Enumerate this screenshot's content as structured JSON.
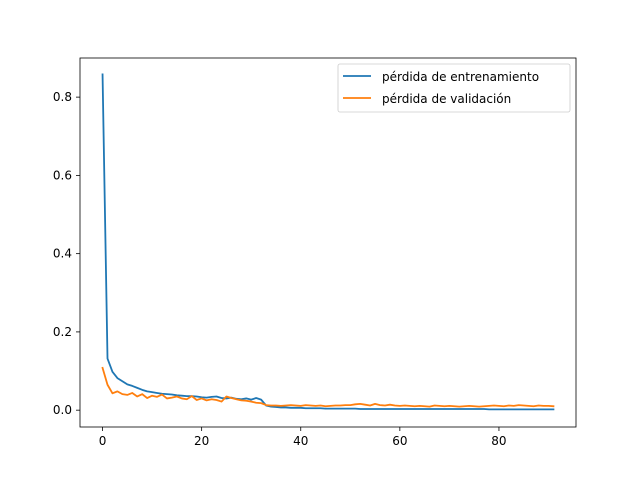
{
  "chart_data": {
    "type": "line",
    "title": "",
    "xlabel": "",
    "ylabel": "",
    "xlim": [
      -4.55,
      95.55
    ],
    "ylim": [
      -0.043,
      0.9
    ],
    "xticks": [
      0,
      20,
      40,
      60,
      80
    ],
    "yticks": [
      0.0,
      0.2,
      0.4,
      0.6,
      0.8
    ],
    "x_tick_labels": [
      "0",
      "20",
      "40",
      "60",
      "80"
    ],
    "y_tick_labels": [
      "0.0",
      "0.2",
      "0.4",
      "0.6",
      "0.8"
    ],
    "grid": false,
    "legend_position": "top-right",
    "series": [
      {
        "name": "pérdida de entrenamiento",
        "color": "#1f77b4",
        "x": [
          0,
          1,
          2,
          3,
          4,
          5,
          6,
          7,
          8,
          9,
          10,
          11,
          12,
          13,
          14,
          15,
          16,
          17,
          18,
          19,
          20,
          21,
          22,
          23,
          24,
          25,
          26,
          27,
          28,
          29,
          30,
          31,
          32,
          33,
          34,
          35,
          36,
          37,
          38,
          39,
          40,
          41,
          42,
          43,
          44,
          45,
          46,
          47,
          48,
          49,
          50,
          51,
          52,
          53,
          54,
          55,
          56,
          57,
          58,
          59,
          60,
          61,
          62,
          63,
          64,
          65,
          66,
          67,
          68,
          69,
          70,
          71,
          72,
          73,
          74,
          75,
          76,
          77,
          78,
          79,
          80,
          81,
          82,
          83,
          84,
          85,
          86,
          87,
          88,
          89,
          90,
          91
        ],
        "values": [
          0.858,
          0.132,
          0.098,
          0.082,
          0.074,
          0.066,
          0.062,
          0.057,
          0.052,
          0.048,
          0.046,
          0.044,
          0.042,
          0.041,
          0.04,
          0.038,
          0.037,
          0.036,
          0.036,
          0.035,
          0.033,
          0.032,
          0.034,
          0.035,
          0.031,
          0.03,
          0.032,
          0.029,
          0.028,
          0.03,
          0.027,
          0.031,
          0.027,
          0.012,
          0.009,
          0.008,
          0.007,
          0.007,
          0.006,
          0.006,
          0.006,
          0.005,
          0.005,
          0.005,
          0.005,
          0.004,
          0.004,
          0.004,
          0.004,
          0.004,
          0.004,
          0.004,
          0.003,
          0.003,
          0.003,
          0.003,
          0.003,
          0.003,
          0.003,
          0.003,
          0.003,
          0.003,
          0.003,
          0.003,
          0.003,
          0.003,
          0.003,
          0.003,
          0.003,
          0.003,
          0.003,
          0.003,
          0.003,
          0.003,
          0.003,
          0.003,
          0.003,
          0.003,
          0.002,
          0.002,
          0.002,
          0.002,
          0.002,
          0.002,
          0.002,
          0.002,
          0.002,
          0.002,
          0.002,
          0.002,
          0.002,
          0.002
        ]
      },
      {
        "name": "pérdida de validación",
        "color": "#ff7f0e",
        "x": [
          0,
          1,
          2,
          3,
          4,
          5,
          6,
          7,
          8,
          9,
          10,
          11,
          12,
          13,
          14,
          15,
          16,
          17,
          18,
          19,
          20,
          21,
          22,
          23,
          24,
          25,
          26,
          27,
          28,
          29,
          30,
          31,
          32,
          33,
          34,
          35,
          36,
          37,
          38,
          39,
          40,
          41,
          42,
          43,
          44,
          45,
          46,
          47,
          48,
          49,
          50,
          51,
          52,
          53,
          54,
          55,
          56,
          57,
          58,
          59,
          60,
          61,
          62,
          63,
          64,
          65,
          66,
          67,
          68,
          69,
          70,
          71,
          72,
          73,
          74,
          75,
          76,
          77,
          78,
          79,
          80,
          81,
          82,
          83,
          84,
          85,
          86,
          87,
          88,
          89,
          90,
          91
        ],
        "values": [
          0.108,
          0.065,
          0.043,
          0.048,
          0.041,
          0.039,
          0.044,
          0.035,
          0.041,
          0.031,
          0.037,
          0.034,
          0.04,
          0.03,
          0.032,
          0.035,
          0.03,
          0.028,
          0.036,
          0.026,
          0.03,
          0.025,
          0.028,
          0.026,
          0.022,
          0.035,
          0.031,
          0.028,
          0.025,
          0.024,
          0.022,
          0.019,
          0.018,
          0.013,
          0.012,
          0.012,
          0.011,
          0.012,
          0.013,
          0.012,
          0.011,
          0.013,
          0.012,
          0.011,
          0.012,
          0.01,
          0.011,
          0.012,
          0.012,
          0.013,
          0.013,
          0.015,
          0.016,
          0.014,
          0.012,
          0.016,
          0.013,
          0.012,
          0.014,
          0.012,
          0.011,
          0.012,
          0.011,
          0.01,
          0.011,
          0.01,
          0.009,
          0.012,
          0.011,
          0.01,
          0.011,
          0.01,
          0.009,
          0.01,
          0.011,
          0.01,
          0.009,
          0.01,
          0.011,
          0.012,
          0.011,
          0.01,
          0.012,
          0.011,
          0.013,
          0.012,
          0.011,
          0.01,
          0.012,
          0.011,
          0.011,
          0.01
        ]
      }
    ]
  }
}
